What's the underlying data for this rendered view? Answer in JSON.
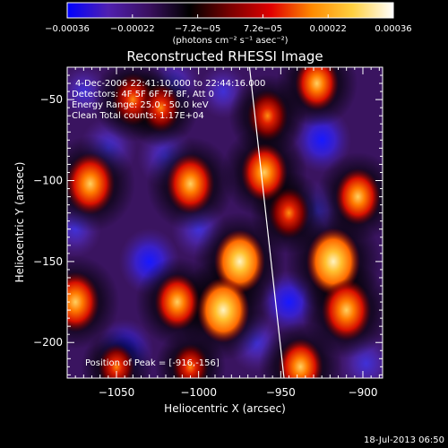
{
  "chart_data": {
    "type": "heatmap",
    "title": "Reconstructed RHESSI Image",
    "xlabel": "Heliocentric X (arcsec)",
    "ylabel": "Heliocentric Y (arcsec)",
    "xlim": [
      -1080,
      -888
    ],
    "ylim": [
      -222,
      -30
    ],
    "x_ticks": [
      {
        "value": -1050,
        "label": "−1050"
      },
      {
        "value": -1000,
        "label": "−1000"
      },
      {
        "value": -950,
        "label": "−950"
      },
      {
        "value": -900,
        "label": "−900"
      }
    ],
    "y_ticks": [
      {
        "value": -50,
        "label": "−50"
      },
      {
        "value": -100,
        "label": "−100"
      },
      {
        "value": -150,
        "label": "−150"
      },
      {
        "value": -200,
        "label": "−200"
      }
    ],
    "colorbar": {
      "range": [
        -0.00036,
        0.00036
      ],
      "tick_labels": [
        "−0.00036",
        "−0.00022",
        "−7.2e−05",
        "7.2e−05",
        "0.00022",
        "0.00036"
      ],
      "unit_label": "(photons cm⁻² s⁻¹ asec⁻²)",
      "colors": [
        "#0000ff",
        "#5020b0",
        "#3a1060",
        "#000000",
        "#7a0000",
        "#e00000",
        "#ff8a00",
        "#ffd040",
        "#ffffff"
      ]
    },
    "annotations": [
      "4-Dec-2006 22:41:10.000 to 22:44:16.000",
      "Detectors: 4F 5F 6F 7F 8F, Att 0",
      "Energy Range: 25.0 - 50.0 keV",
      "Clean     Total counts: 1.17E+04"
    ],
    "peak_label": "Position of Peak = [-916,-156]",
    "limb_line": [
      [
        -969,
        -30
      ],
      [
        -948,
        -222
      ]
    ],
    "bright_sources": [
      {
        "x": -1066,
        "y": -102,
        "v": 0.85
      },
      {
        "x": -1040,
        "y": -50,
        "v": 0.6
      },
      {
        "x": -1005,
        "y": -102,
        "v": 0.8
      },
      {
        "x": -975,
        "y": -150,
        "v": 0.9
      },
      {
        "x": -985,
        "y": -180,
        "v": 0.95
      },
      {
        "x": -960,
        "y": -95,
        "v": 0.75
      },
      {
        "x": -958,
        "y": -60,
        "v": 0.55
      },
      {
        "x": -918,
        "y": -150,
        "v": 1.0
      },
      {
        "x": -910,
        "y": -180,
        "v": 0.85
      },
      {
        "x": -938,
        "y": -215,
        "v": 0.7
      },
      {
        "x": -928,
        "y": -40,
        "v": 0.65
      },
      {
        "x": -903,
        "y": -110,
        "v": 0.7
      },
      {
        "x": -1075,
        "y": -175,
        "v": 0.8
      },
      {
        "x": -1023,
        "y": -55,
        "v": 0.5
      },
      {
        "x": -1013,
        "y": -175,
        "v": 0.7
      },
      {
        "x": -1050,
        "y": -215,
        "v": 0.4
      },
      {
        "x": -1005,
        "y": -215,
        "v": 0.4
      },
      {
        "x": -945,
        "y": -120,
        "v": 0.55
      }
    ],
    "dark_sources": [
      {
        "x": -1055,
        "y": -80,
        "v": -0.7
      },
      {
        "x": -1030,
        "y": -150,
        "v": -0.85
      },
      {
        "x": -1045,
        "y": -205,
        "v": -0.75
      },
      {
        "x": -1000,
        "y": -130,
        "v": -0.6
      },
      {
        "x": -1020,
        "y": -85,
        "v": -0.7
      },
      {
        "x": -1015,
        "y": -40,
        "v": -0.6
      },
      {
        "x": -985,
        "y": -45,
        "v": -0.4
      },
      {
        "x": -925,
        "y": -75,
        "v": -0.8
      },
      {
        "x": -945,
        "y": -175,
        "v": -0.75
      },
      {
        "x": -898,
        "y": -213,
        "v": -0.7
      },
      {
        "x": -928,
        "y": -118,
        "v": -0.6
      },
      {
        "x": -1075,
        "y": -130,
        "v": -0.5
      },
      {
        "x": -965,
        "y": -200,
        "v": -0.6
      },
      {
        "x": -1070,
        "y": -45,
        "v": -0.4
      }
    ]
  },
  "footer": {
    "timestamp": "18-Jul-2013 06:50"
  }
}
